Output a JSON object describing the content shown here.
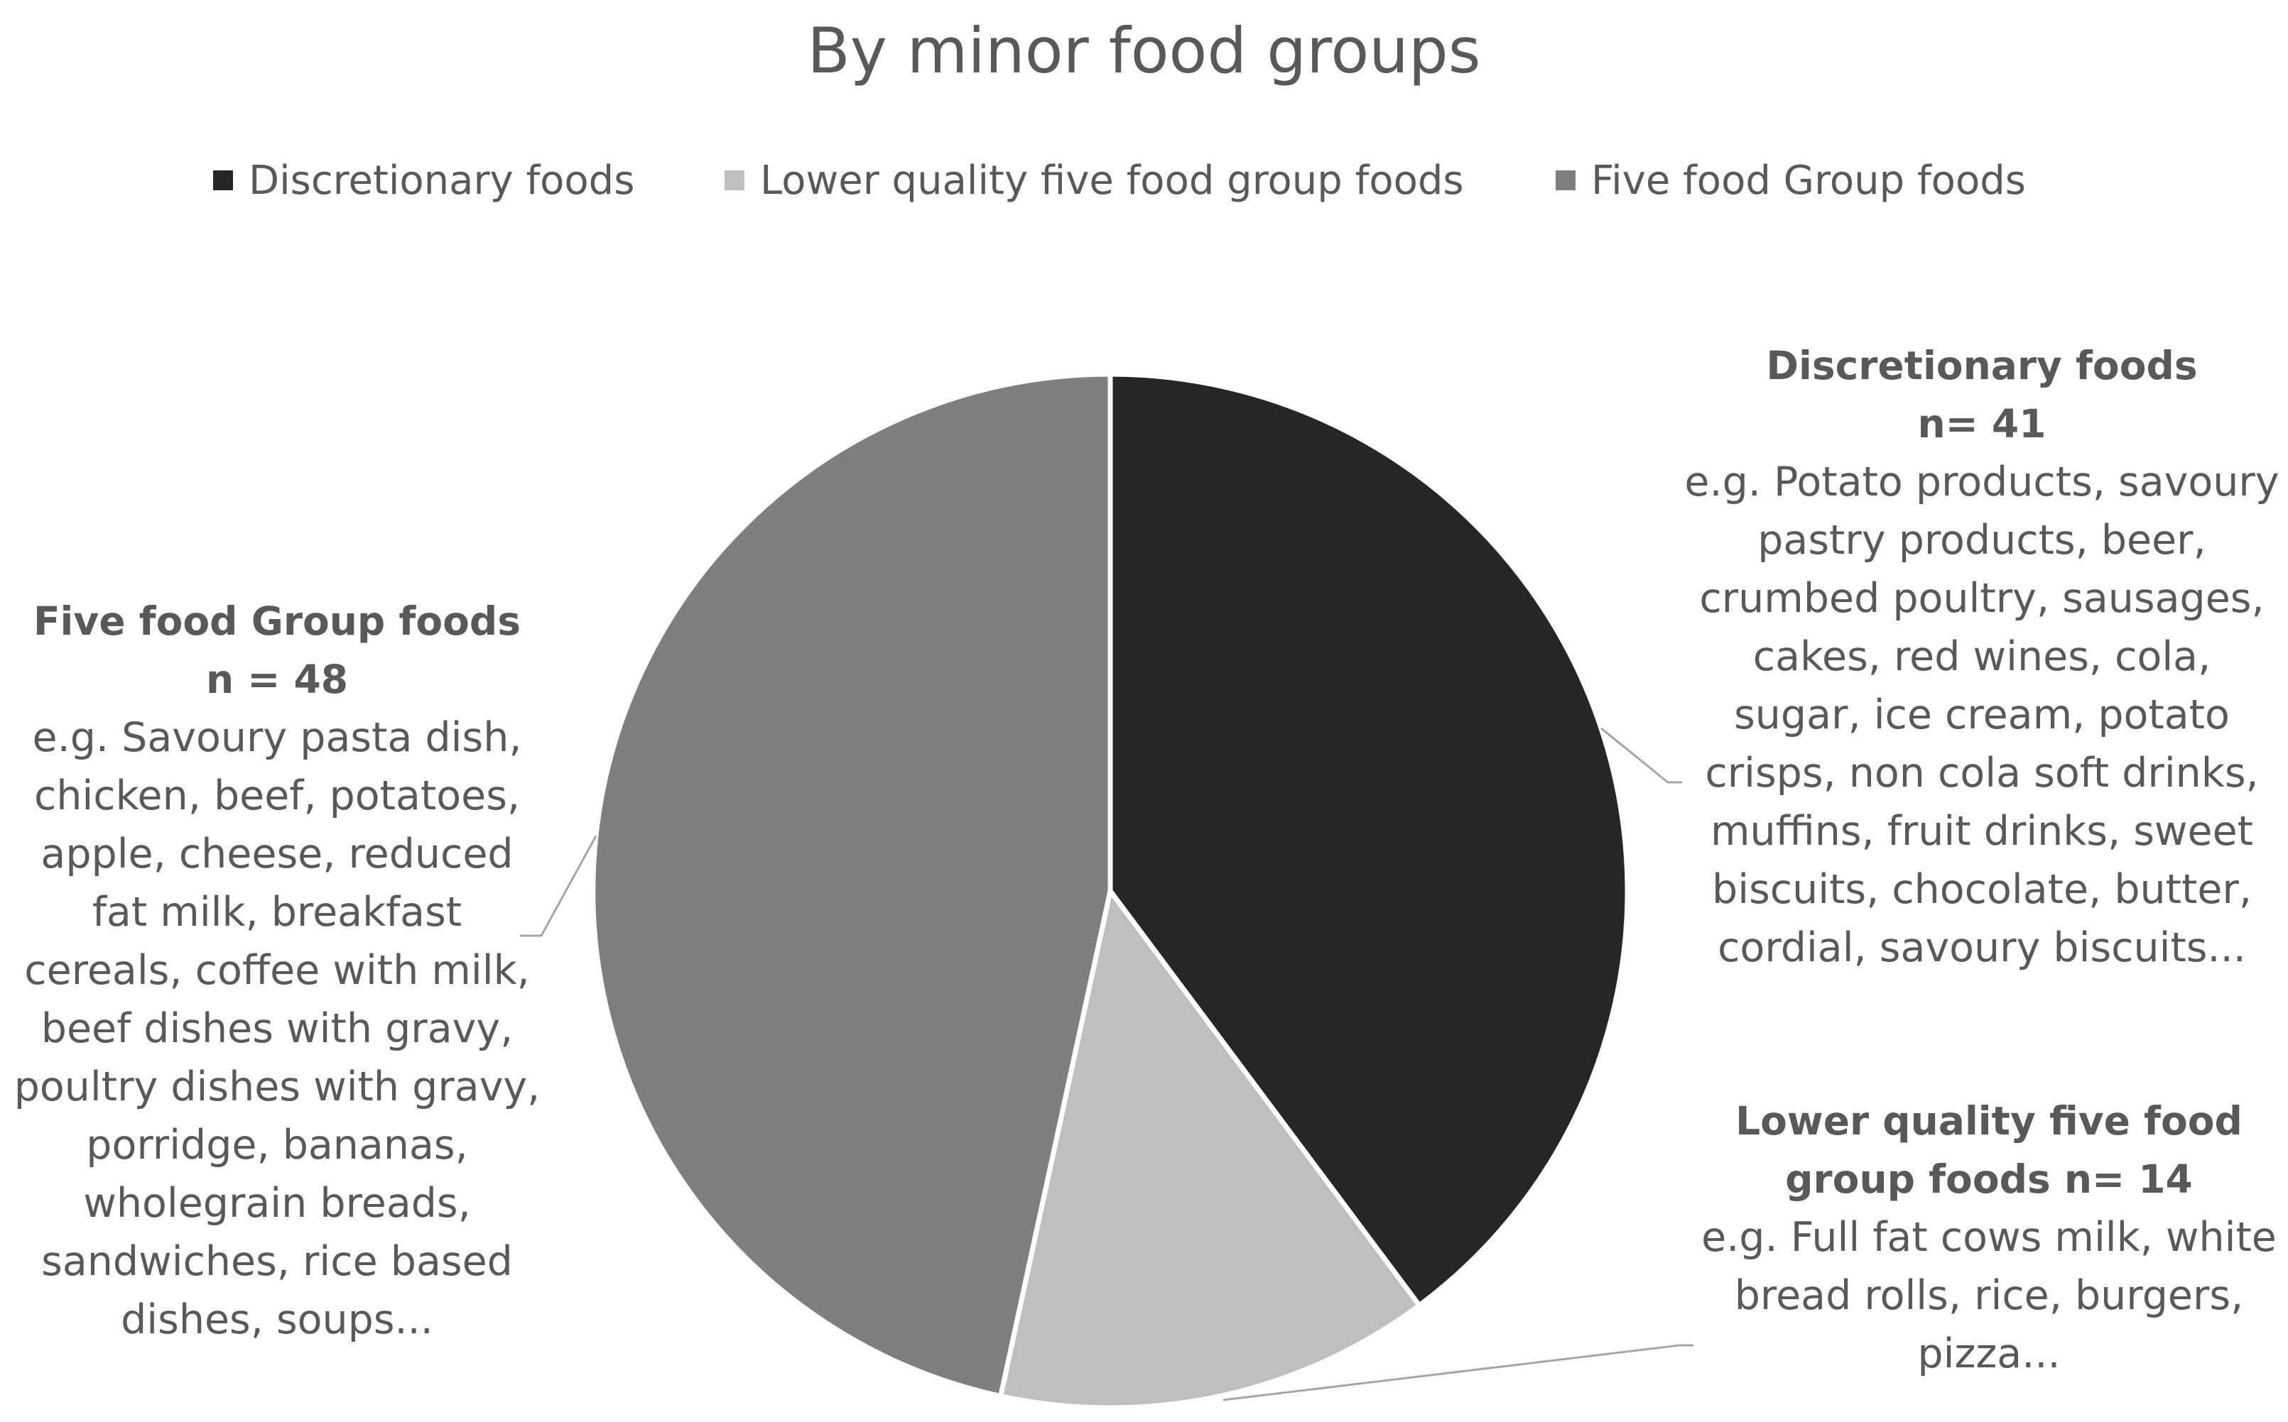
{
  "chart_data": {
    "type": "pie",
    "title": "By minor food groups",
    "start_angle_deg": 0,
    "direction": "clockwise",
    "series": [
      {
        "name": "Discretionary foods",
        "value": 41,
        "color": "#262626"
      },
      {
        "name": "Lower quality five food group foods",
        "value": 14,
        "color": "#bfbfbf"
      },
      {
        "name": "Five food Group foods",
        "value": 48,
        "color": "#7f7f7f"
      }
    ],
    "legend_position": "top",
    "legend": [
      "Discretionary foods",
      "Lower quality five food group foods",
      "Five food Group foods"
    ],
    "data_labels": {
      "discretionary": {
        "heading": "Discretionary  foods",
        "count": "n= 41",
        "examples": "e.g. Potato products, savoury pastry products, beer, crumbed poultry, sausages, cakes, red wines, cola, sugar, ice cream, potato crisps, non cola soft drinks, muffins, fruit drinks, sweet biscuits, chocolate, butter, cordial, savoury biscuits..."
      },
      "lower_quality": {
        "heading": "Lower quality five food group foods",
        "count": "n= 14",
        "examples": "e.g. Full fat cows milk, white bread rolls, rice, burgers, pizza..."
      },
      "five_food_group": {
        "heading": "Five food Group foods",
        "count": "n = 48",
        "examples": "e.g. Savoury pasta dish, chicken, beef, potatoes, apple, cheese, reduced fat milk, breakfast cereals, coffee with milk, beef dishes with gravy, poultry dishes with gravy, porridge, bananas, wholegrain breads, sandwiches, rice based dishes, soups..."
      }
    }
  }
}
